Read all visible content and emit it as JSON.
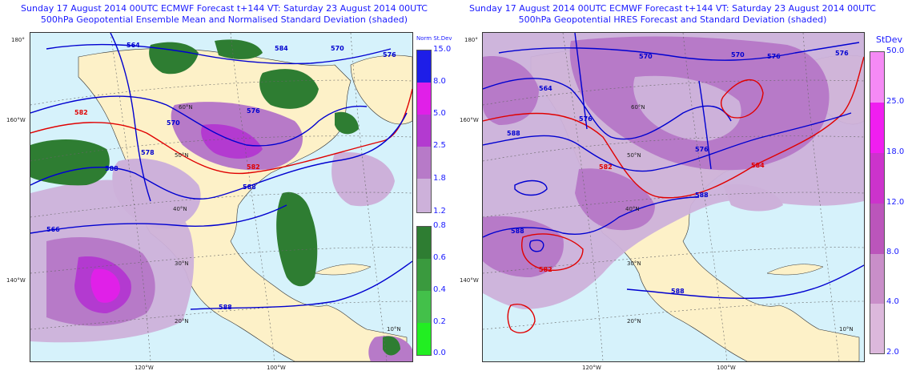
{
  "left_panel": {
    "title_line1": "Sunday 17 August 2014 00UTC ECMWF Forecast t+144  VT: Saturday 23 August 2014 00UTC",
    "title_line2": "500hPa Geopotential Ensemble Mean and Normalised Standard Deviation (shaded)",
    "colorbar_title": "Norm St.Dev",
    "colorbar_purple_ticks": [
      "15.0",
      "8.0",
      "5.0",
      "2.5",
      "1.8",
      "1.2"
    ],
    "colorbar_green_ticks": [
      "0.8",
      "0.6",
      "0.4",
      "0.2",
      "0.0"
    ],
    "contour_labels": [
      "564",
      "576",
      "582",
      "588",
      "570",
      "582",
      "584",
      "578",
      "588",
      "566",
      "588",
      "570",
      "576"
    ],
    "lat_labels": [
      "60°N",
      "50°N",
      "40°N",
      "30°N",
      "20°N",
      "10°N"
    ],
    "lon_labels": [
      "180°",
      "160°W",
      "140°W",
      "120°W",
      "100°W"
    ]
  },
  "right_panel": {
    "title_line1": "Sunday 17 August 2014 00UTC ECMWF Forecast t+144  VT: Saturday 23 August 2014 00UTC",
    "title_line2": "500hPa Geopotential HRES Forecast and Standard Deviation (shaded)",
    "colorbar_title": "StDev",
    "colorbar_ticks": [
      "50.0",
      "25.0",
      "18.0",
      "12.0",
      "8.0",
      "4.0",
      "2.0"
    ],
    "contour_labels": [
      "564",
      "576",
      "570",
      "576",
      "588",
      "582",
      "576",
      "588",
      "588",
      "584",
      "582",
      "588",
      "570",
      "576"
    ],
    "lat_labels": [
      "60°N",
      "50°N",
      "40°N",
      "30°N",
      "20°N",
      "10°N"
    ],
    "lon_labels": [
      "180°",
      "160°W",
      "140°W",
      "120°W",
      "100°W"
    ]
  },
  "colors": {
    "ocean": "#d6f2fb",
    "land": "#fdf1c8",
    "contour_blue": "#0000d0",
    "contour_red": "#e00000",
    "purple_1": "#cdb1da",
    "purple_2": "#b77ac8",
    "purple_3": "#b33ad0",
    "magenta": "#e020e8",
    "green_dark": "#2e7d32",
    "green_mid": "#43a047"
  }
}
